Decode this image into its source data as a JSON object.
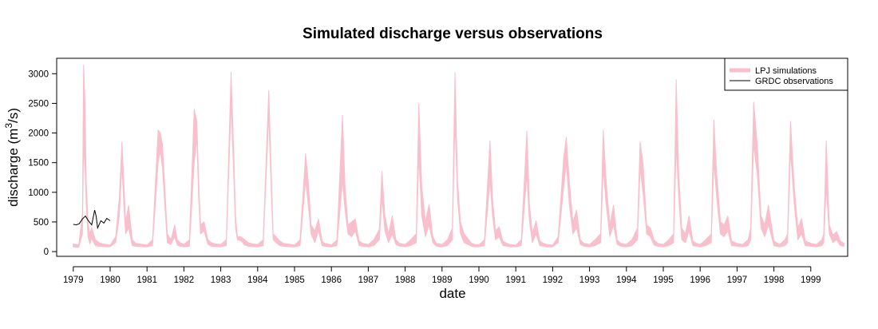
{
  "chart_data": {
    "type": "area",
    "title": "Simulated discharge versus observations",
    "xlabel": "date",
    "ylabel_prefix": "discharge (m",
    "ylabel_superscript": "3",
    "ylabel_suffix": "/s)",
    "xlim": [
      1978.55,
      2000.0
    ],
    "ylim": [
      -80,
      3260
    ],
    "x_ticks": [
      "1979",
      "1980",
      "1981",
      "1982",
      "1983",
      "1984",
      "1985",
      "1986",
      "1987",
      "1988",
      "1989",
      "1990",
      "1991",
      "1992",
      "1993",
      "1994",
      "1995",
      "1996",
      "1997",
      "1998",
      "1999"
    ],
    "y_ticks": [
      "0",
      "500",
      "1000",
      "1500",
      "2000",
      "2500",
      "3000"
    ],
    "legend": {
      "position": "top-right",
      "entries": [
        "LPJ simulations",
        "GRDC observations"
      ]
    },
    "colors": {
      "simulation": "#f8c0cc",
      "observation": "#000000",
      "axis": "#000000"
    },
    "series": [
      {
        "name": "LPJ simulations",
        "kind": "band",
        "x": [
          1979.0,
          1979.15,
          1979.25,
          1979.28,
          1979.32,
          1979.35,
          1979.4,
          1979.45,
          1979.5,
          1979.6,
          1979.7,
          1979.8,
          1979.9,
          1980.0,
          1980.15,
          1980.25,
          1980.32,
          1980.37,
          1980.42,
          1980.5,
          1980.6,
          1980.7,
          1980.8,
          1980.9,
          1981.0,
          1981.15,
          1981.3,
          1981.36,
          1981.42,
          1981.48,
          1981.55,
          1981.65,
          1981.75,
          1981.82,
          1981.9,
          1982.0,
          1982.15,
          1982.28,
          1982.35,
          1982.4,
          1982.45,
          1982.55,
          1982.65,
          1982.75,
          1982.85,
          1983.0,
          1983.15,
          1983.28,
          1983.35,
          1983.4,
          1983.45,
          1983.55,
          1983.65,
          1983.75,
          1983.85,
          1984.0,
          1984.15,
          1984.3,
          1984.37,
          1984.42,
          1984.5,
          1984.6,
          1984.7,
          1984.8,
          1984.9,
          1985.0,
          1985.15,
          1985.3,
          1985.37,
          1985.45,
          1985.55,
          1985.65,
          1985.75,
          1985.82,
          1985.9,
          1986.0,
          1986.15,
          1986.3,
          1986.37,
          1986.45,
          1986.55,
          1986.65,
          1986.75,
          1986.85,
          1987.0,
          1987.15,
          1987.3,
          1987.37,
          1987.45,
          1987.55,
          1987.65,
          1987.75,
          1987.85,
          1988.0,
          1988.15,
          1988.3,
          1988.37,
          1988.45,
          1988.55,
          1988.65,
          1988.75,
          1988.85,
          1989.0,
          1989.15,
          1989.28,
          1989.35,
          1989.42,
          1989.5,
          1989.6,
          1989.7,
          1989.8,
          1989.9,
          1990.0,
          1990.15,
          1990.3,
          1990.37,
          1990.45,
          1990.55,
          1990.65,
          1990.75,
          1990.85,
          1991.0,
          1991.15,
          1991.3,
          1991.37,
          1991.45,
          1991.55,
          1991.65,
          1991.75,
          1991.85,
          1992.0,
          1992.15,
          1992.3,
          1992.37,
          1992.45,
          1992.55,
          1992.65,
          1992.75,
          1992.85,
          1993.0,
          1993.15,
          1993.3,
          1993.37,
          1993.45,
          1993.55,
          1993.65,
          1993.75,
          1993.85,
          1994.0,
          1994.15,
          1994.3,
          1994.37,
          1994.45,
          1994.55,
          1994.65,
          1994.75,
          1994.85,
          1995.0,
          1995.15,
          1995.28,
          1995.35,
          1995.42,
          1995.5,
          1995.6,
          1995.7,
          1995.8,
          1995.9,
          1996.0,
          1996.15,
          1996.3,
          1996.37,
          1996.45,
          1996.55,
          1996.65,
          1996.75,
          1996.85,
          1997.0,
          1997.15,
          1997.3,
          1997.37,
          1997.45,
          1997.55,
          1997.65,
          1997.75,
          1997.85,
          1998.0,
          1998.15,
          1998.3,
          1998.37,
          1998.45,
          1998.55,
          1998.65,
          1998.75,
          1998.85,
          1999.0,
          1999.15,
          1999.3,
          1999.35,
          1999.42,
          1999.5,
          1999.6,
          1999.7,
          1999.8,
          1999.9
        ],
        "y_low": [
          80,
          70,
          300,
          1750,
          1400,
          800,
          250,
          130,
          220,
          100,
          90,
          85,
          80,
          80,
          150,
          600,
          1450,
          800,
          300,
          400,
          100,
          90,
          85,
          80,
          80,
          100,
          1500,
          1700,
          1400,
          800,
          150,
          120,
          250,
          110,
          90,
          80,
          90,
          1500,
          1900,
          900,
          300,
          350,
          120,
          90,
          85,
          80,
          100,
          2500,
          1300,
          400,
          200,
          180,
          110,
          90,
          85,
          80,
          100,
          2300,
          1000,
          200,
          150,
          100,
          90,
          85,
          80,
          80,
          100,
          1200,
          800,
          300,
          150,
          350,
          100,
          90,
          85,
          80,
          100,
          1200,
          700,
          300,
          250,
          350,
          100,
          90,
          80,
          100,
          200,
          900,
          350,
          150,
          300,
          120,
          90,
          80,
          100,
          150,
          1600,
          600,
          250,
          450,
          150,
          90,
          80,
          100,
          200,
          2200,
          900,
          300,
          150,
          120,
          90,
          80,
          80,
          100,
          1200,
          600,
          200,
          250,
          100,
          90,
          80,
          80,
          100,
          1300,
          500,
          150,
          300,
          100,
          90,
          80,
          80,
          150,
          1100,
          1500,
          800,
          300,
          400,
          120,
          90,
          80,
          100,
          150,
          1400,
          800,
          250,
          450,
          120,
          90,
          80,
          100,
          200,
          1400,
          1000,
          300,
          250,
          110,
          90,
          80,
          100,
          150,
          1800,
          900,
          200,
          150,
          350,
          100,
          90,
          80,
          100,
          150,
          1500,
          900,
          300,
          250,
          350,
          100,
          90,
          80,
          100,
          200,
          1800,
          1300,
          400,
          250,
          450,
          100,
          80,
          100,
          150,
          1700,
          800,
          200,
          300,
          100,
          90,
          80,
          100,
          150,
          1100,
          300,
          150,
          200,
          100,
          90
        ],
        "y_high": [
          130,
          110,
          650,
          3150,
          2500,
          1200,
          500,
          300,
          400,
          200,
          150,
          130,
          120,
          110,
          250,
          900,
          1850,
          1200,
          500,
          780,
          200,
          140,
          130,
          120,
          110,
          200,
          2050,
          2000,
          1800,
          1100,
          300,
          200,
          450,
          200,
          150,
          120,
          200,
          2400,
          2200,
          1200,
          450,
          500,
          200,
          150,
          130,
          120,
          200,
          3030,
          1700,
          600,
          250,
          250,
          200,
          150,
          130,
          120,
          200,
          2720,
          1300,
          300,
          250,
          180,
          140,
          130,
          120,
          110,
          200,
          1650,
          1200,
          450,
          350,
          550,
          180,
          140,
          130,
          110,
          200,
          2300,
          1100,
          450,
          500,
          550,
          180,
          140,
          120,
          200,
          380,
          1350,
          600,
          300,
          600,
          200,
          140,
          120,
          200,
          300,
          2500,
          1100,
          500,
          800,
          250,
          140,
          120,
          200,
          400,
          3020,
          1200,
          500,
          300,
          220,
          140,
          120,
          110,
          200,
          1870,
          900,
          350,
          420,
          180,
          140,
          120,
          110,
          200,
          2030,
          800,
          300,
          520,
          180,
          140,
          120,
          110,
          250,
          1600,
          1930,
          1200,
          500,
          700,
          200,
          140,
          120,
          200,
          300,
          2050,
          1200,
          450,
          780,
          200,
          140,
          120,
          200,
          400,
          1850,
          1500,
          450,
          400,
          200,
          140,
          120,
          200,
          300,
          2900,
          1300,
          400,
          300,
          600,
          180,
          140,
          120,
          200,
          300,
          2220,
          1300,
          500,
          450,
          600,
          180,
          140,
          120,
          200,
          400,
          2520,
          1800,
          600,
          450,
          780,
          180,
          120,
          200,
          300,
          2200,
          1100,
          400,
          560,
          180,
          140,
          120,
          200,
          300,
          1870,
          450,
          280,
          340,
          180,
          140
        ]
      },
      {
        "name": "GRDC observations",
        "kind": "line",
        "x": [
          1979.0,
          1979.08,
          1979.16,
          1979.25,
          1979.33,
          1979.41,
          1979.5,
          1979.58,
          1979.62,
          1979.66,
          1979.75,
          1979.83,
          1979.91,
          1980.0
        ],
        "y": [
          460,
          450,
          470,
          550,
          600,
          520,
          450,
          700,
          600,
          400,
          520,
          480,
          560,
          520
        ]
      }
    ]
  }
}
